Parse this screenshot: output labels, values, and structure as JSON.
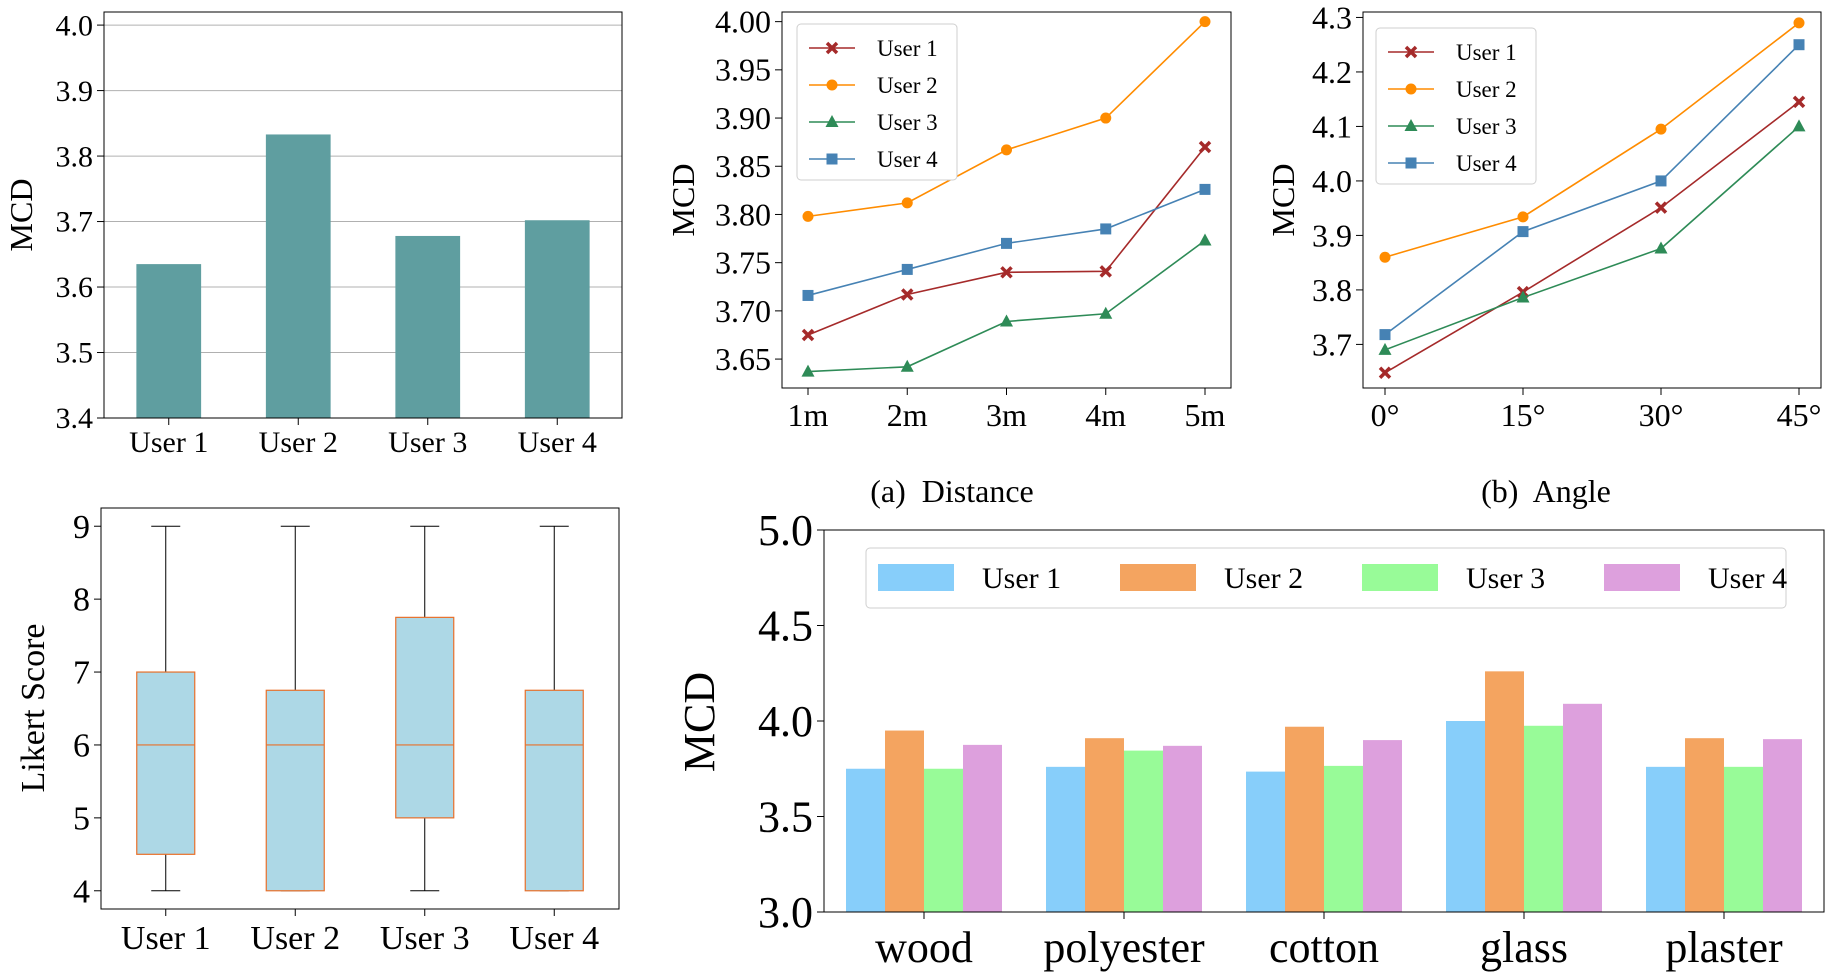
{
  "chart_data": [
    {
      "id": "bar_users",
      "type": "bar",
      "categories": [
        "User 1",
        "User 2",
        "User 3",
        "User 4"
      ],
      "values": [
        3.635,
        3.833,
        3.678,
        3.702
      ],
      "ylabel": "MCD",
      "ylim": [
        3.4,
        4.02
      ],
      "yticks": [
        "3.4",
        "3.5",
        "3.6",
        "3.7",
        "3.8",
        "3.9",
        "4.0"
      ],
      "grid": true,
      "colors": {
        "bar": "#5f9ea0"
      }
    },
    {
      "id": "line_distance",
      "type": "line",
      "x": [
        "1m",
        "2m",
        "3m",
        "4m",
        "5m"
      ],
      "series": [
        {
          "name": "User 1",
          "values": [
            3.675,
            3.717,
            3.74,
            3.741,
            3.87
          ],
          "color": "#a52a2a",
          "marker": "x"
        },
        {
          "name": "User 2",
          "values": [
            3.798,
            3.812,
            3.867,
            3.9,
            4.0
          ],
          "color": "#ff8c00",
          "marker": "o"
        },
        {
          "name": "User 3",
          "values": [
            3.637,
            3.642,
            3.689,
            3.697,
            3.773
          ],
          "color": "#2e8b57",
          "marker": "^"
        },
        {
          "name": "User 4",
          "values": [
            3.716,
            3.743,
            3.77,
            3.785,
            3.826
          ],
          "color": "#4682b4",
          "marker": "s"
        }
      ],
      "ylabel": "MCD",
      "ylim": [
        3.62,
        4.01
      ],
      "yticks": [
        "3.65",
        "3.70",
        "3.75",
        "3.80",
        "3.85",
        "3.90",
        "3.95",
        "4.00"
      ],
      "caption": "(a)  Distance",
      "legend": "top-left"
    },
    {
      "id": "line_angle",
      "type": "line",
      "x": [
        "0°",
        "15°",
        "30°",
        "45°"
      ],
      "series": [
        {
          "name": "User 1",
          "values": [
            3.648,
            3.796,
            3.951,
            4.145
          ],
          "color": "#a52a2a",
          "marker": "x"
        },
        {
          "name": "User 2",
          "values": [
            3.86,
            3.934,
            4.095,
            4.29
          ],
          "color": "#ff8c00",
          "marker": "o"
        },
        {
          "name": "User 3",
          "values": [
            3.69,
            3.786,
            3.876,
            4.1
          ],
          "color": "#2e8b57",
          "marker": "^"
        },
        {
          "name": "User 4",
          "values": [
            3.718,
            3.907,
            4.0,
            4.25
          ],
          "color": "#4682b4",
          "marker": "s"
        }
      ],
      "ylabel": "MCD",
      "ylim": [
        3.62,
        4.31
      ],
      "yticks": [
        "3.7",
        "3.8",
        "3.9",
        "4.0",
        "4.1",
        "4.2",
        "4.3"
      ],
      "caption": "(b)  Angle",
      "legend": "top-left"
    },
    {
      "id": "box_likert",
      "type": "box",
      "categories": [
        "User 1",
        "User 2",
        "User 3",
        "User 4"
      ],
      "boxes": [
        {
          "min": 4,
          "q1": 4.5,
          "median": 6,
          "q3": 7,
          "max": 9
        },
        {
          "min": 4,
          "q1": 4,
          "median": 6,
          "q3": 6.75,
          "max": 9
        },
        {
          "min": 4,
          "q1": 5,
          "median": 6,
          "q3": 7.75,
          "max": 9
        },
        {
          "min": 4,
          "q1": 4,
          "median": 6,
          "q3": 6.75,
          "max": 9
        }
      ],
      "ylabel": "Likert Score",
      "ylim": [
        3.75,
        9.25
      ],
      "yticks": [
        "4",
        "5",
        "6",
        "7",
        "8",
        "9"
      ],
      "colors": {
        "fill": "#add8e6",
        "edge": "#e8702a",
        "whisker": "#000000"
      }
    },
    {
      "id": "grouped_materials",
      "type": "bar",
      "categories": [
        "wood",
        "polyester",
        "cotton",
        "glass",
        "plaster"
      ],
      "series": [
        {
          "name": "User 1",
          "values": [
            3.75,
            3.76,
            3.735,
            4.0,
            3.76
          ],
          "color": "#87cefa"
        },
        {
          "name": "User 2",
          "values": [
            3.95,
            3.91,
            3.97,
            4.26,
            3.91
          ],
          "color": "#f4a460"
        },
        {
          "name": "User 3",
          "values": [
            3.75,
            3.845,
            3.765,
            3.975,
            3.76
          ],
          "color": "#98fb98"
        },
        {
          "name": "User 4",
          "values": [
            3.875,
            3.87,
            3.9,
            4.09,
            3.905
          ],
          "color": "#dda0dd"
        }
      ],
      "ylabel": "MCD",
      "ylim": [
        3.0,
        5.0
      ],
      "yticks": [
        "3.0",
        "3.5",
        "4.0",
        "4.5",
        "5.0"
      ],
      "legend": "top"
    }
  ]
}
